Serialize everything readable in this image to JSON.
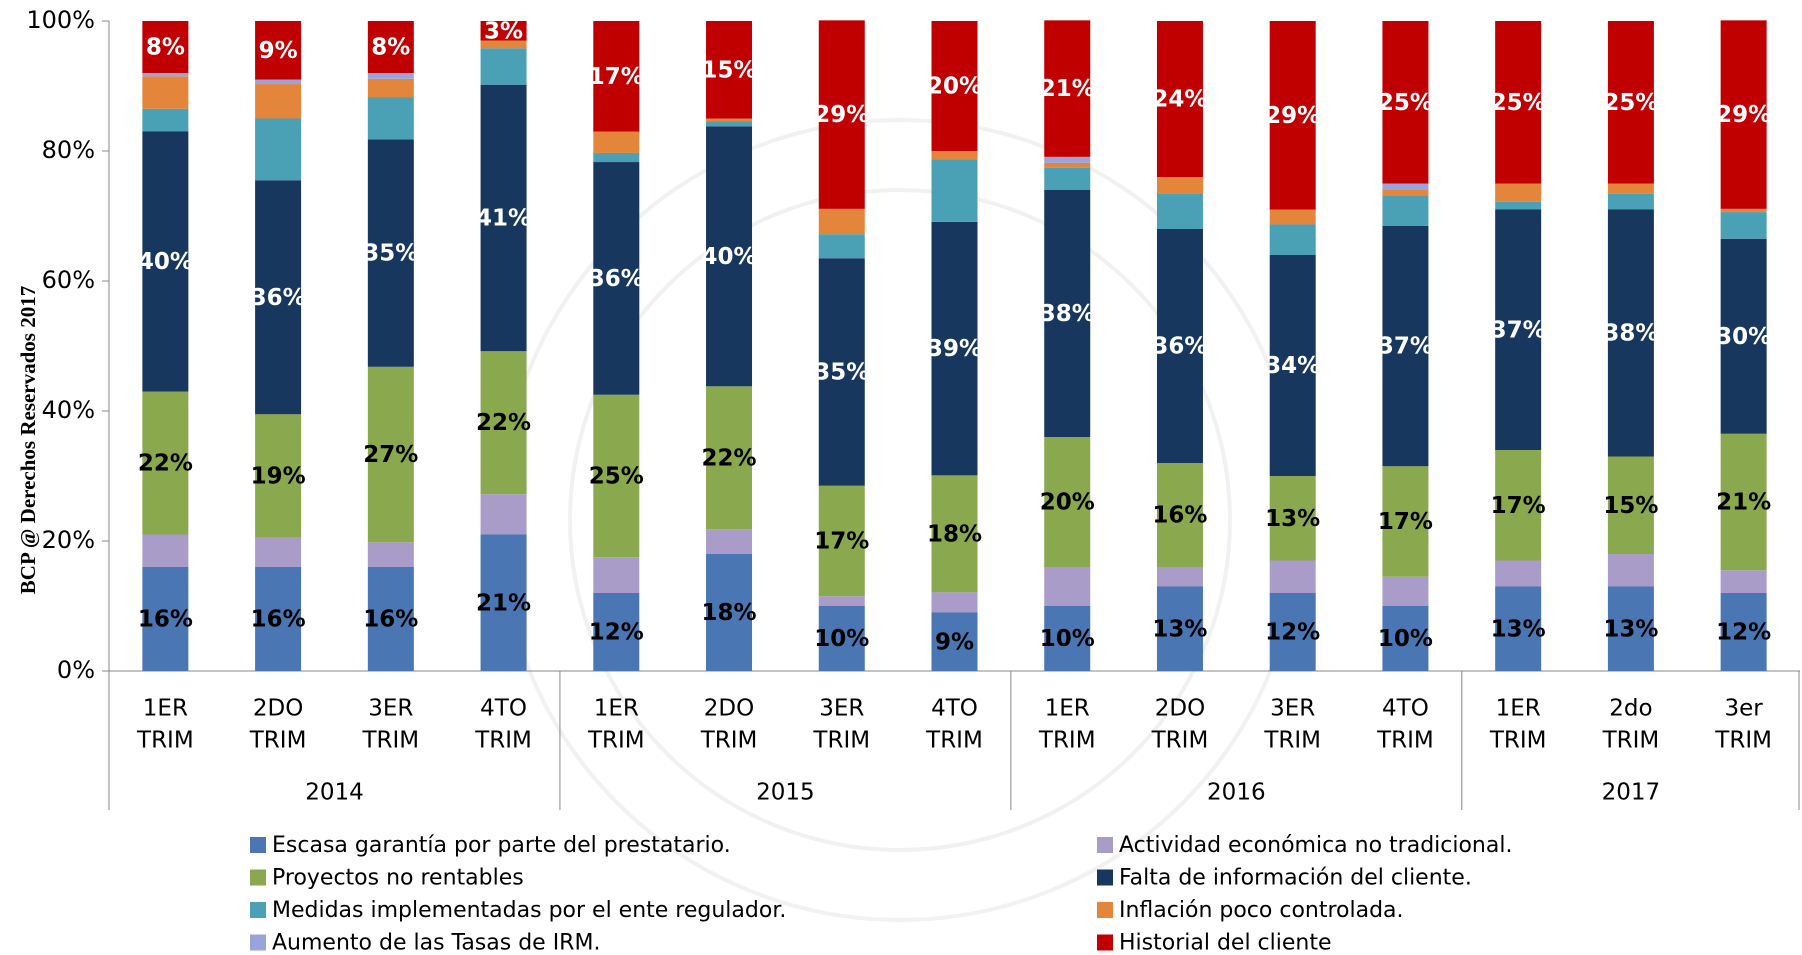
{
  "chart_data": {
    "type": "stacked-bar",
    "watermark": "BCP @ Derechos Reservados 2017",
    "groups": [
      {
        "name": "2014",
        "categories": [
          [
            "1ER",
            "TRIM"
          ],
          [
            "2DO",
            "TRIM"
          ],
          [
            "3ER",
            "TRIM"
          ],
          [
            "4TO",
            "TRIM"
          ]
        ]
      },
      {
        "name": "2015",
        "categories": [
          [
            "1ER",
            "TRIM"
          ],
          [
            "2DO",
            "TRIM"
          ],
          [
            "3ER",
            "TRIM"
          ],
          [
            "4TO",
            "TRIM"
          ]
        ]
      },
      {
        "name": "2016",
        "categories": [
          [
            "1ER",
            "TRIM"
          ],
          [
            "2DO",
            "TRIM"
          ],
          [
            "3ER",
            "TRIM"
          ],
          [
            "4TO",
            "TRIM"
          ]
        ]
      },
      {
        "name": "2017",
        "categories": [
          [
            "1ER",
            "TRIM"
          ],
          [
            "2do",
            "TRIM"
          ],
          [
            "3er",
            "TRIM"
          ]
        ]
      }
    ],
    "ylim": [
      0,
      100
    ],
    "yticks": [
      {
        "value": 0,
        "label": "0%"
      },
      {
        "value": 20,
        "label": "20%"
      },
      {
        "value": 40,
        "label": "40%"
      },
      {
        "value": 60,
        "label": "60%"
      },
      {
        "value": 80,
        "label": "80%"
      },
      {
        "value": 100,
        "label": "100%"
      }
    ],
    "series": [
      {
        "name": "Escasa garantía por parte del prestatario.",
        "color": "#4a76b4",
        "label_color": "#000000",
        "values": [
          16,
          16,
          16,
          21,
          12,
          18,
          10,
          9,
          10,
          13,
          12,
          10,
          13,
          13,
          12
        ],
        "value_labels": [
          "16%",
          "16%",
          "16%",
          "21%",
          "12%",
          "18%",
          "10%",
          "9%",
          "10%",
          "13%",
          "12%",
          "10%",
          "13%",
          "13%",
          "12%"
        ]
      },
      {
        "name": "Actividad económica no tradicional.",
        "color": "#a99cc9",
        "values": [
          5,
          4.5,
          3.8,
          6.2,
          5.5,
          3.8,
          1.5,
          3.1,
          6,
          3,
          5,
          4.5,
          4,
          5,
          3.5
        ]
      },
      {
        "name": "Proyectos no rentables",
        "color": "#8aa84e",
        "label_color": "#000000",
        "values": [
          22,
          19,
          27,
          22,
          25,
          22,
          17,
          18,
          20,
          16,
          13,
          17,
          17,
          15,
          21
        ],
        "value_labels": [
          "22%",
          "19%",
          "27%",
          "22%",
          "25%",
          "22%",
          "17%",
          "18%",
          "20%",
          "16%",
          "13%",
          "17%",
          "17%",
          "15%",
          "21%"
        ]
      },
      {
        "name": "Falta de información del cliente.",
        "color": "#17375e",
        "label_color": "#ffffff",
        "values": [
          40,
          36,
          35,
          41,
          35.8,
          40,
          35,
          39,
          38,
          36,
          34,
          37,
          37,
          38,
          30
        ],
        "value_labels": [
          "40%",
          "36%",
          "35%",
          "41%",
          "36%",
          "40%",
          "35%",
          "39%",
          "38%",
          "36%",
          "34%",
          "37%",
          "37%",
          "38%",
          "30%"
        ]
      },
      {
        "name": "Medidas implementadas por el ente regulador.",
        "color": "#4aa0b4",
        "values": [
          3.5,
          9.5,
          6.5,
          5.6,
          1.4,
          0.8,
          3.7,
          9.6,
          3.4,
          5.5,
          4.7,
          4.7,
          1.2,
          2.4,
          4.1
        ]
      },
      {
        "name": "Inflación poco controlada.",
        "color": "#e3853a",
        "values": [
          5,
          5.3,
          2.8,
          1.2,
          3.3,
          0.4,
          3.9,
          1.3,
          0.8,
          2.5,
          2.3,
          0.9,
          2.8,
          1.6,
          0.5
        ]
      },
      {
        "name": "Aumento de las Tasas de IRM.",
        "color": "#9aa4dc",
        "values": [
          0.5,
          0.7,
          0.9,
          0,
          0,
          0,
          0,
          0,
          0.9,
          0,
          0,
          0.9,
          0,
          0,
          0
        ]
      },
      {
        "name": "Historial del cliente",
        "color": "#c00000",
        "label_color": "#ffffff",
        "values": [
          8,
          9,
          8,
          3,
          17,
          15,
          29,
          20,
          21,
          24,
          29,
          25,
          25,
          25,
          29
        ],
        "value_labels": [
          "8%",
          "9%",
          "8%",
          "3%",
          "17%",
          "15%",
          "29%",
          "20%",
          "21%",
          "24%",
          "29%",
          "25%",
          "25%",
          "25%",
          "29%"
        ]
      }
    ]
  }
}
